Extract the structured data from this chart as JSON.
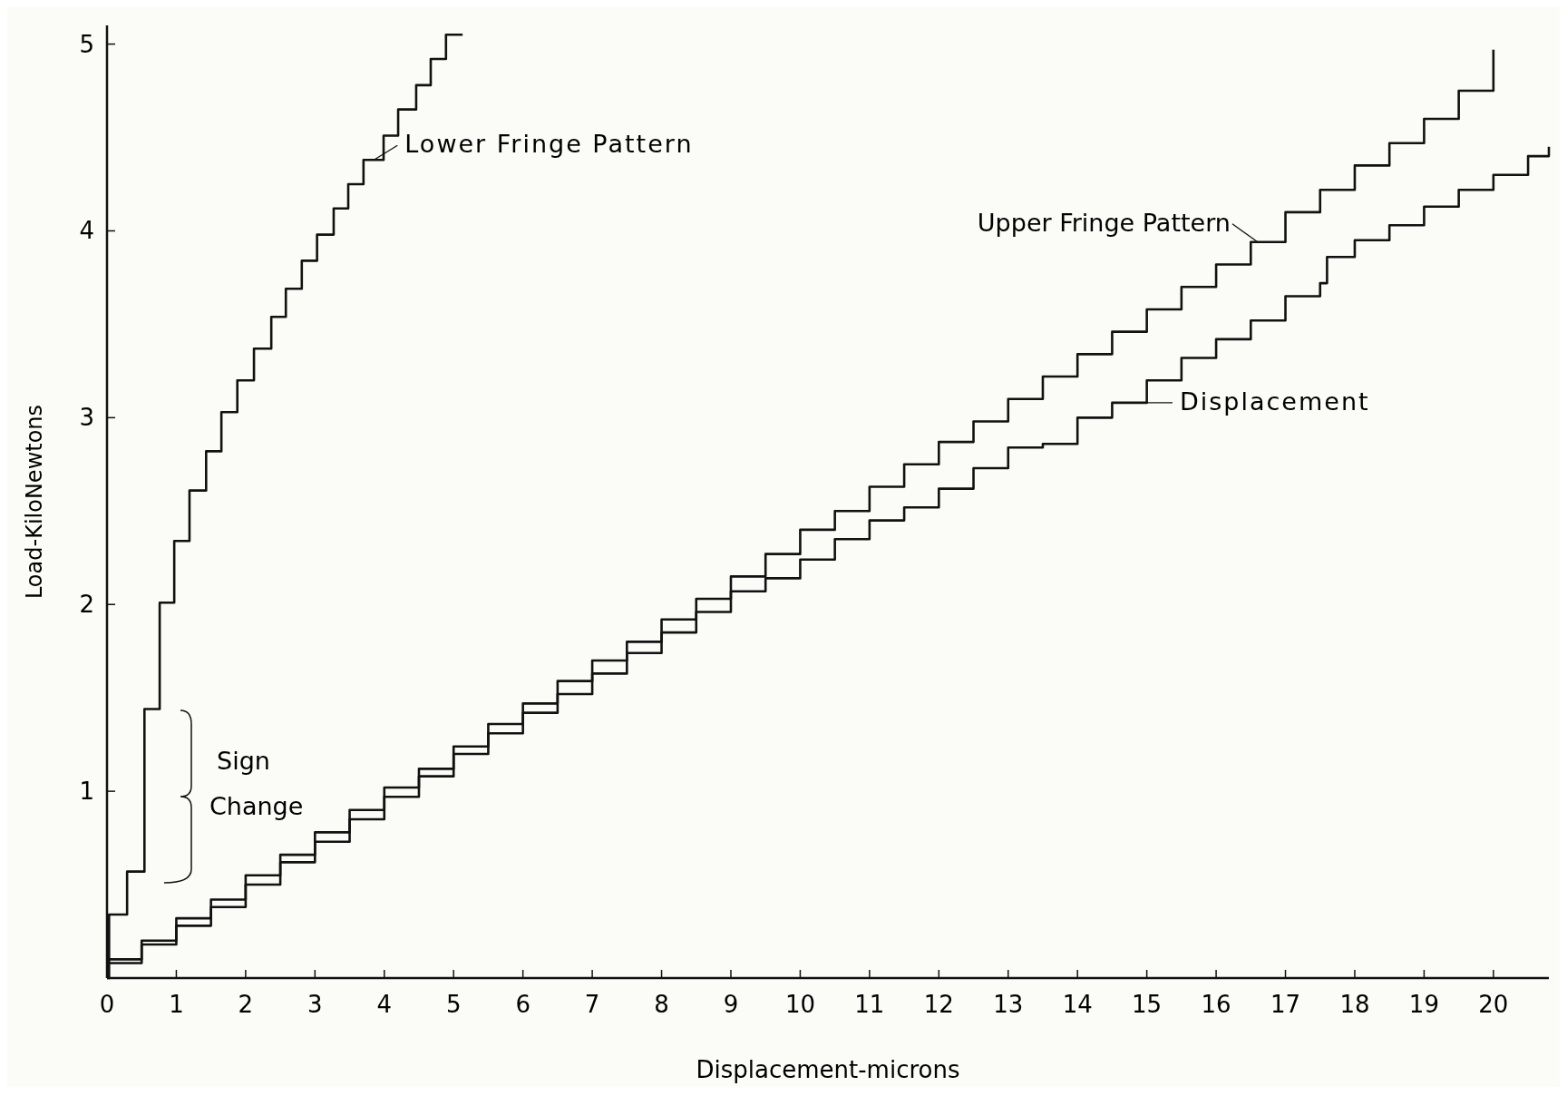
{
  "chart_data": {
    "type": "step",
    "xlabel": "Displacement-microns",
    "ylabel": "Load-KiloNewtons",
    "xlim": [
      0,
      20.8
    ],
    "xticks": [
      0,
      1,
      2,
      3,
      4,
      5,
      6,
      7,
      8,
      9,
      10,
      11,
      12,
      13,
      14,
      15,
      16,
      17,
      18,
      19,
      20
    ],
    "ylim": [
      0,
      5.1
    ],
    "yticks": [
      1,
      2,
      3,
      4,
      5
    ],
    "grid": false,
    "legend": "top",
    "marker": "none",
    "line_style": "solid",
    "series": [
      {
        "name": "Lower Fringe Pattern",
        "color": "#111111",
        "x": [
          0,
          0.03,
          0.29,
          0.54,
          0.76,
          0.97,
          1.19,
          1.43,
          1.65,
          1.88,
          2.12,
          2.37,
          2.58,
          2.81,
          3.03,
          3.27,
          3.48,
          3.7,
          3.99,
          4.2,
          4.46,
          4.67,
          4.89,
          5.13
        ],
        "values": [
          0,
          0.34,
          0.57,
          1.44,
          2.01,
          2.34,
          2.61,
          2.82,
          3.03,
          3.2,
          3.37,
          3.54,
          3.69,
          3.84,
          3.98,
          4.12,
          4.25,
          4.38,
          4.51,
          4.65,
          4.78,
          4.92,
          5.05,
          5.05
        ]
      },
      {
        "name": "Upper Fringe Pattern",
        "color": "#111111",
        "x": [
          0,
          0.5,
          1,
          1.5,
          2,
          2.5,
          3,
          3.5,
          4,
          4.5,
          5,
          5.5,
          6,
          6.5,
          7,
          7.5,
          8,
          8.5,
          9,
          9.5,
          10,
          10.5,
          11,
          11.5,
          12,
          12.5,
          13,
          13.5,
          14,
          14.5,
          15,
          15.5,
          16,
          16.5,
          17,
          17.5,
          18,
          18.5,
          19,
          19.5,
          20
        ],
        "values": [
          0.1,
          0.2,
          0.32,
          0.42,
          0.55,
          0.66,
          0.78,
          0.9,
          1.02,
          1.12,
          1.24,
          1.36,
          1.47,
          1.59,
          1.7,
          1.8,
          1.92,
          2.03,
          2.15,
          2.27,
          2.4,
          2.5,
          2.63,
          2.75,
          2.87,
          2.98,
          3.1,
          3.22,
          3.34,
          3.46,
          3.58,
          3.7,
          3.82,
          3.94,
          4.1,
          4.22,
          4.35,
          4.47,
          4.6,
          4.75,
          4.97
        ]
      },
      {
        "name": "Displacement",
        "color": "#111111",
        "x": [
          0,
          0.5,
          1,
          1.5,
          2,
          2.5,
          3,
          3.5,
          4,
          4.5,
          5,
          5.5,
          6,
          6.5,
          7,
          7.5,
          8,
          8.5,
          9,
          9.5,
          10,
          10.5,
          11,
          11.5,
          12,
          12.5,
          13,
          13.5,
          14,
          14.5,
          15,
          15.5,
          16,
          16.5,
          17,
          17.5,
          17.6,
          18,
          18.5,
          19,
          19.5,
          20,
          20.5,
          20.8
        ],
        "values": [
          0.08,
          0.18,
          0.28,
          0.38,
          0.5,
          0.62,
          0.73,
          0.85,
          0.97,
          1.08,
          1.2,
          1.31,
          1.42,
          1.52,
          1.63,
          1.74,
          1.85,
          1.96,
          2.07,
          2.14,
          2.24,
          2.35,
          2.45,
          2.52,
          2.62,
          2.73,
          2.84,
          2.86,
          3.0,
          3.08,
          3.2,
          3.32,
          3.42,
          3.52,
          3.65,
          3.72,
          3.86,
          3.95,
          4.03,
          4.13,
          4.22,
          4.3,
          4.4,
          4.45
        ]
      }
    ],
    "annotations": [
      "Sign Change"
    ]
  }
}
